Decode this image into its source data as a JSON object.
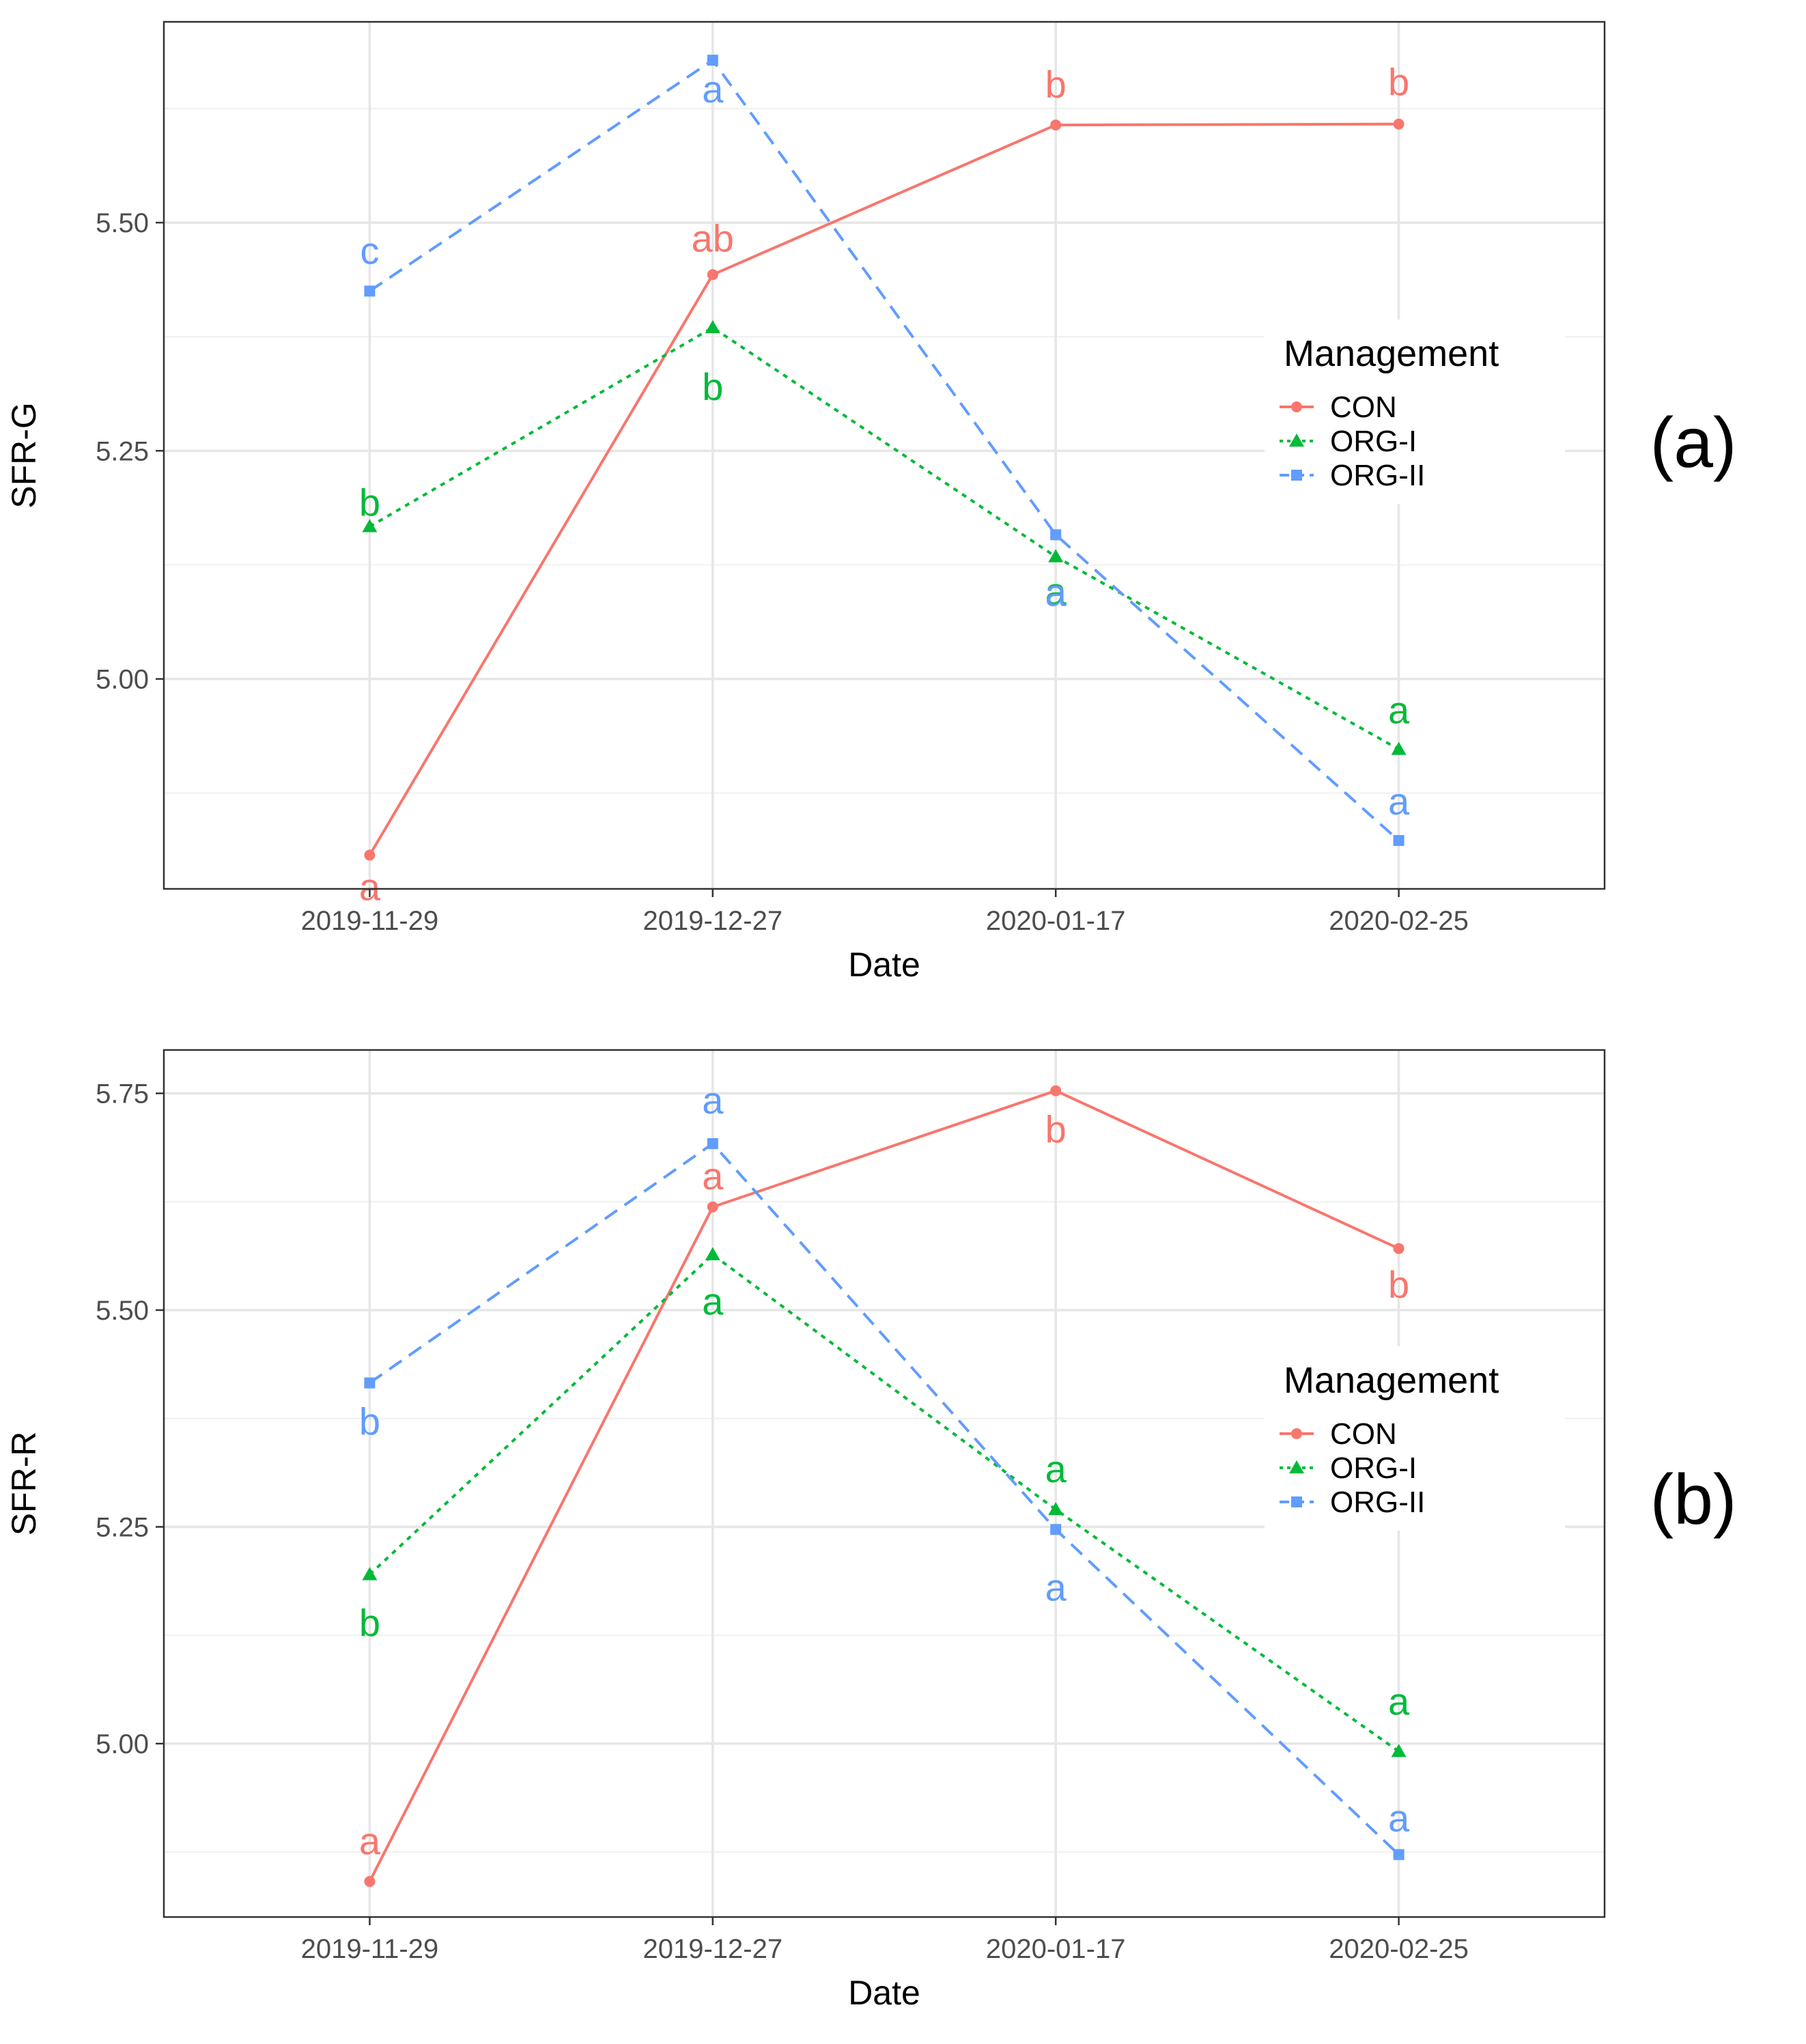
{
  "chart_data": [
    {
      "type": "line",
      "panel_tag": "(a)",
      "xlabel": "Date",
      "ylabel": "SFR-G",
      "categories": [
        "2019-11-29",
        "2019-12-27",
        "2020-01-17",
        "2020-02-25"
      ],
      "xlim": [
        0.4,
        4.6
      ],
      "ylim": [
        4.77,
        5.72
      ],
      "yticks": [
        5.0,
        5.25,
        5.5
      ],
      "ytick_labels": [
        "5.00",
        "5.25",
        "5.50"
      ],
      "grid": true,
      "legend": {
        "title": "Management",
        "position": "right"
      },
      "series": [
        {
          "name": "CON",
          "color": "#F8766D",
          "dash": "solid",
          "marker": "circle",
          "values": [
            4.807,
            5.443,
            5.607,
            5.608
          ],
          "letters": [
            "a",
            "ab",
            "b",
            "b"
          ]
        },
        {
          "name": "ORG-I",
          "color": "#00BA38",
          "dash": "dotted",
          "marker": "triangle",
          "values": [
            5.167,
            5.385,
            5.134,
            4.923
          ],
          "letters": [
            "b",
            "b",
            "a",
            "a"
          ]
        },
        {
          "name": "ORG-II",
          "color": "#619CFF",
          "dash": "dashed",
          "marker": "square",
          "values": [
            5.425,
            5.678,
            5.158,
            4.823
          ],
          "letters": [
            "c",
            "a",
            "a",
            "a"
          ]
        }
      ]
    },
    {
      "type": "line",
      "panel_tag": "(b)",
      "xlabel": "Date",
      "ylabel": "SFR-R",
      "categories": [
        "2019-11-29",
        "2019-12-27",
        "2020-01-17",
        "2020-02-25"
      ],
      "xlim": [
        0.4,
        4.6
      ],
      "ylim": [
        4.8,
        5.8
      ],
      "yticks": [
        5.0,
        5.25,
        5.5,
        5.75
      ],
      "ytick_labels": [
        "5.00",
        "5.25",
        "5.50",
        "5.75"
      ],
      "grid": true,
      "legend": {
        "title": "Management",
        "position": "right"
      },
      "series": [
        {
          "name": "CON",
          "color": "#F8766D",
          "dash": "solid",
          "marker": "circle",
          "values": [
            4.841,
            5.619,
            5.753,
            5.571
          ],
          "letters": [
            "a",
            "a",
            "b",
            "b"
          ]
        },
        {
          "name": "ORG-I",
          "color": "#00BA38",
          "dash": "dotted",
          "marker": "triangle",
          "values": [
            5.195,
            5.564,
            5.27,
            4.991
          ],
          "letters": [
            "b",
            "a",
            "a",
            "a"
          ]
        },
        {
          "name": "ORG-II",
          "color": "#619CFF",
          "dash": "dashed",
          "marker": "square",
          "values": [
            5.416,
            5.692,
            5.247,
            4.872
          ],
          "letters": [
            "b",
            "a",
            "a",
            "a"
          ]
        }
      ]
    }
  ]
}
